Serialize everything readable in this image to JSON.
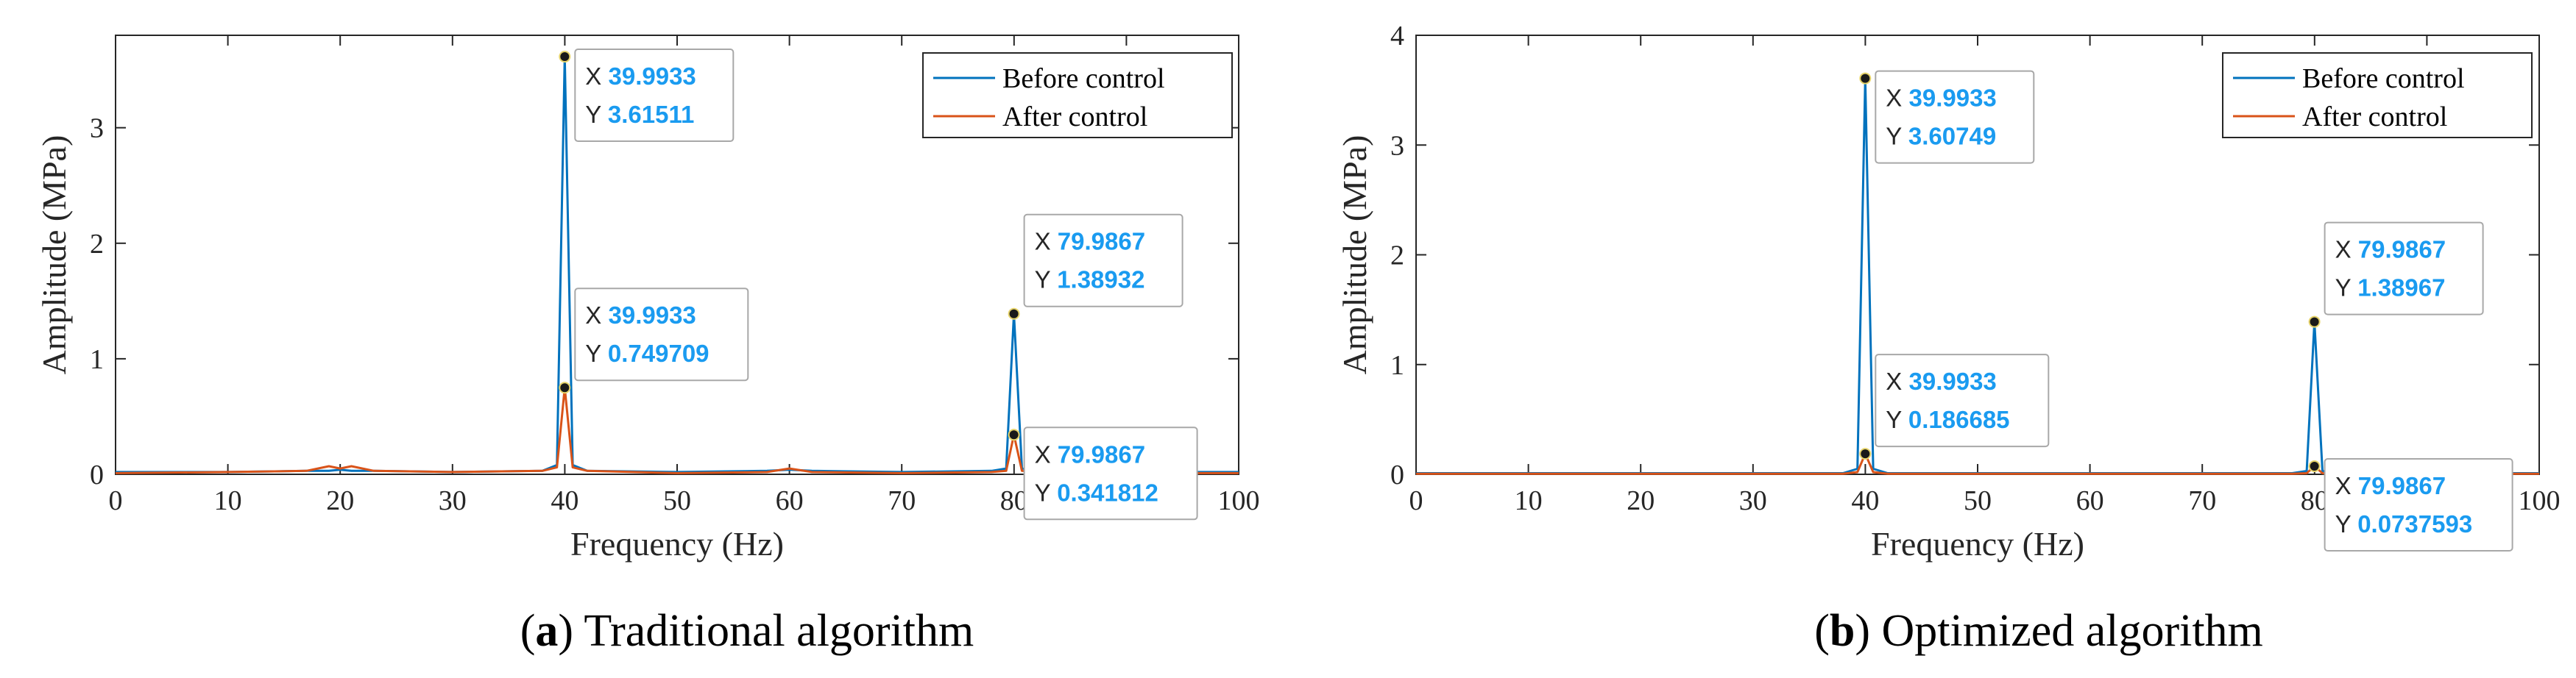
{
  "colors": {
    "before": "#0072BD",
    "after": "#D95319",
    "datatip_value": "#1a9bf0",
    "axes": "#262626"
  },
  "chart_data": [
    {
      "type": "line",
      "caption_letter": "a",
      "caption_text": "Traditional algorithm",
      "xlabel": "Frequency (Hz)",
      "ylabel": "Amplitude (MPa)",
      "xlim": [
        0,
        100
      ],
      "ylim": [
        0,
        3.8
      ],
      "xticks": [
        0,
        10,
        20,
        30,
        40,
        50,
        60,
        70,
        80,
        90,
        100
      ],
      "yticks": [
        0,
        1,
        2,
        3
      ],
      "grid": false,
      "legend_position": "top-right",
      "series": [
        {
          "name": "Before control",
          "color": "#0072BD",
          "x": [
            0,
            10,
            17,
            19,
            20,
            21,
            23,
            30,
            38,
            39.3,
            39.9933,
            40.7,
            42,
            50,
            58,
            60,
            62,
            70,
            78,
            79.3,
            79.9867,
            80.7,
            82,
            90,
            100
          ],
          "y": [
            0.02,
            0.02,
            0.03,
            0.03,
            0.04,
            0.03,
            0.03,
            0.02,
            0.03,
            0.08,
            3.61511,
            0.08,
            0.03,
            0.02,
            0.03,
            0.04,
            0.03,
            0.02,
            0.03,
            0.05,
            1.38932,
            0.05,
            0.03,
            0.02,
            0.02
          ]
        },
        {
          "name": "After control",
          "color": "#D95319",
          "x": [
            0,
            10,
            17,
            19,
            20,
            21,
            23,
            30,
            38,
            39.3,
            39.9933,
            40.7,
            42,
            50,
            58,
            60,
            62,
            70,
            78,
            79.3,
            79.9867,
            80.7,
            82,
            90,
            100
          ],
          "y": [
            0.01,
            0.02,
            0.03,
            0.07,
            0.05,
            0.07,
            0.03,
            0.02,
            0.03,
            0.06,
            0.749709,
            0.06,
            0.03,
            0.01,
            0.02,
            0.05,
            0.02,
            0.01,
            0.02,
            0.03,
            0.341812,
            0.03,
            0.02,
            0.01,
            0.01
          ]
        }
      ],
      "datatips": [
        {
          "x_label": "X",
          "x_value": "39.9933",
          "y_label": "Y",
          "y_value": "3.61511",
          "x": 39.9933,
          "y": 3.61511
        },
        {
          "x_label": "X",
          "x_value": "39.9933",
          "y_label": "Y",
          "y_value": "0.749709",
          "x": 39.9933,
          "y": 0.749709
        },
        {
          "x_label": "X",
          "x_value": "79.9867",
          "y_label": "Y",
          "y_value": "1.38932",
          "x": 79.9867,
          "y": 1.38932
        },
        {
          "x_label": "X",
          "x_value": "79.9867",
          "y_label": "Y",
          "y_value": "0.341812",
          "x": 79.9867,
          "y": 0.341812
        }
      ]
    },
    {
      "type": "line",
      "caption_letter": "b",
      "caption_text": "Optimized algorithm",
      "xlabel": "Frequency (Hz)",
      "ylabel": "Amplitude (MPa)",
      "xlim": [
        0,
        100
      ],
      "ylim": [
        0,
        4
      ],
      "xticks": [
        0,
        10,
        20,
        30,
        40,
        50,
        60,
        70,
        80,
        90,
        100
      ],
      "yticks": [
        0,
        1,
        2,
        3,
        4
      ],
      "grid": false,
      "legend_position": "top-right",
      "series": [
        {
          "name": "Before control",
          "color": "#0072BD",
          "x": [
            0,
            10,
            20,
            30,
            38,
            39.3,
            39.9933,
            40.7,
            42,
            50,
            60,
            70,
            78,
            79.3,
            79.9867,
            80.7,
            82,
            90,
            100
          ],
          "y": [
            0.01,
            0.01,
            0.01,
            0.01,
            0.01,
            0.05,
            3.60749,
            0.05,
            0.01,
            0.01,
            0.01,
            0.01,
            0.01,
            0.03,
            1.38967,
            0.03,
            0.01,
            0.01,
            0.01
          ]
        },
        {
          "name": "After control",
          "color": "#D95319",
          "x": [
            0,
            10,
            20,
            30,
            38,
            39.3,
            39.9933,
            40.7,
            42,
            50,
            60,
            70,
            78,
            79.3,
            79.9867,
            80.7,
            82,
            90,
            100
          ],
          "y": [
            0.005,
            0.005,
            0.005,
            0.005,
            0.005,
            0.02,
            0.186685,
            0.02,
            0.005,
            0.005,
            0.005,
            0.005,
            0.005,
            0.01,
            0.0737593,
            0.01,
            0.005,
            0.005,
            0.005
          ]
        }
      ],
      "datatips": [
        {
          "x_label": "X",
          "x_value": "39.9933",
          "y_label": "Y",
          "y_value": "3.60749",
          "x": 39.9933,
          "y": 3.60749
        },
        {
          "x_label": "X",
          "x_value": "39.9933",
          "y_label": "Y",
          "y_value": "0.186685",
          "x": 39.9933,
          "y": 0.186685
        },
        {
          "x_label": "X",
          "x_value": "79.9867",
          "y_label": "Y",
          "y_value": "1.38967",
          "x": 79.9867,
          "y": 1.38967
        },
        {
          "x_label": "X",
          "x_value": "79.9867",
          "y_label": "Y",
          "y_value": "0.0737593",
          "x": 79.9867,
          "y": 0.0737593
        }
      ]
    }
  ]
}
